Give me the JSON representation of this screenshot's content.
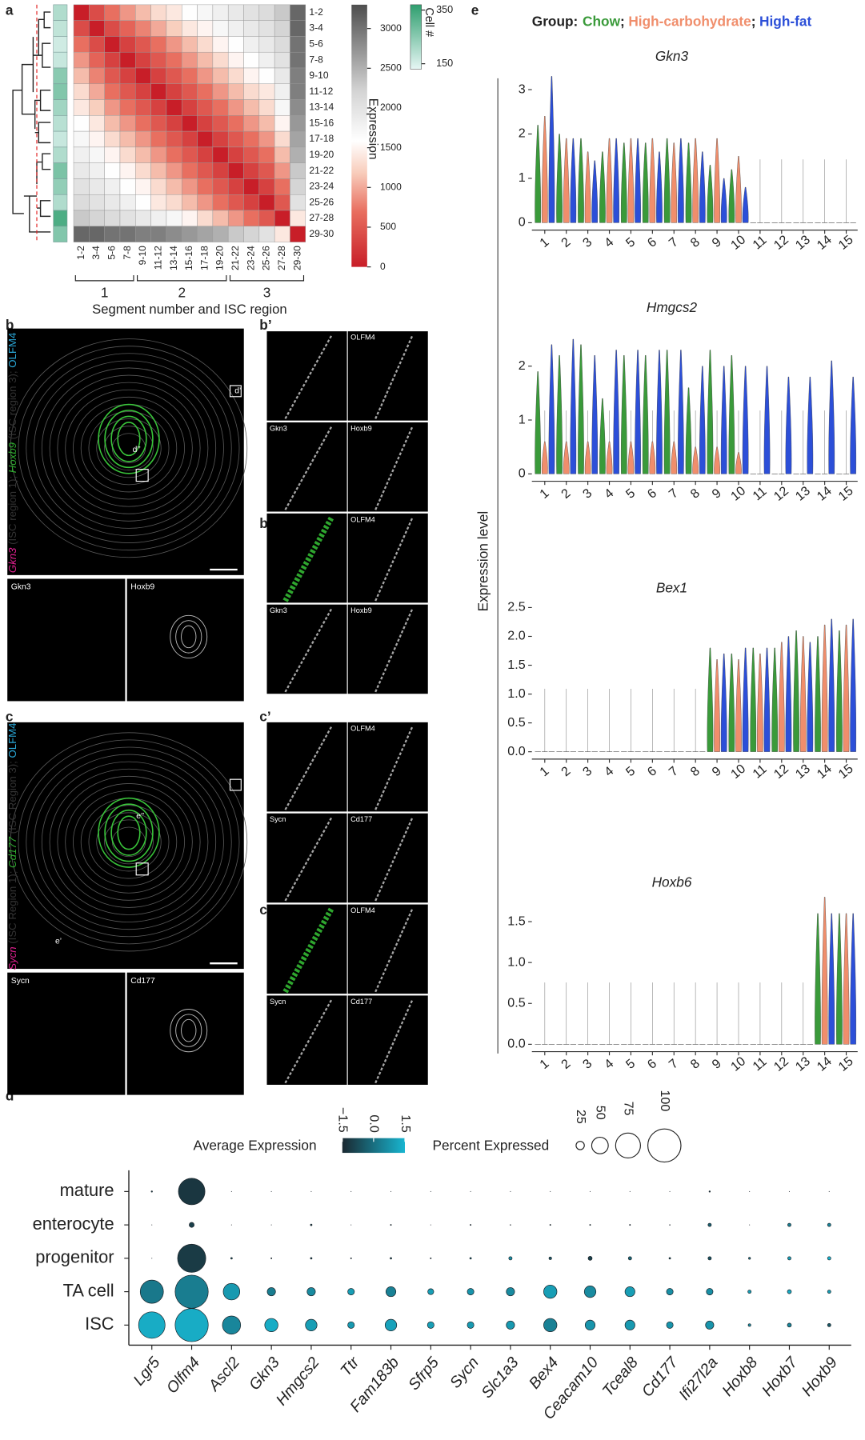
{
  "letters": [
    "a",
    "b",
    "b’",
    "b’’",
    "c",
    "c’",
    "c’’",
    "d",
    "e"
  ],
  "images": {
    "b": {
      "label": [
        "Gkn3",
        " (ISC region 1); ",
        "Hoxb9",
        " (ISC region 3); ",
        "OLFM4"
      ],
      "callouts": [
        "d’",
        "d’’"
      ],
      "insets": [
        "Gkn3",
        "Hoxb9"
      ]
    },
    "b_prime": {
      "tiles": [
        "OLFM4",
        "Gkn3",
        "Hoxb9",
        "OLFM4",
        "Gkn3",
        "Hoxb9"
      ]
    },
    "c": {
      "label": [
        "Sycn",
        " (ISC Region 1); ",
        "Cd177",
        " (ISC Region 3); ",
        "OLFM4"
      ],
      "callouts": [
        "e’’",
        "e’"
      ],
      "insets": [
        "Sycn",
        "Cd177"
      ]
    },
    "c_prime": {
      "tiles": [
        "OLFM4",
        "Sycn",
        "Cd177",
        "OLFM4",
        "Sycn",
        "Cd177"
      ]
    }
  },
  "chart_data": [
    {
      "type": "heatmap",
      "xlabel": "Segment number and ISC region",
      "regions": [
        "1",
        "2",
        "3"
      ],
      "categories": [
        "1-2",
        "3-4",
        "5-6",
        "7-8",
        "9-10",
        "11-12",
        "13-14",
        "15-16",
        "17-18",
        "19-20",
        "21-22",
        "23-24",
        "25-26",
        "27-28",
        "29-30"
      ],
      "values": [
        [
          0,
          400,
          700,
          900,
          1100,
          1300,
          1400,
          1600,
          1700,
          1800,
          1900,
          2000,
          2100,
          2300,
          3100
        ],
        [
          400,
          0,
          400,
          600,
          800,
          1000,
          1200,
          1400,
          1500,
          1700,
          1800,
          1900,
          2000,
          2200,
          3100
        ],
        [
          700,
          400,
          0,
          300,
          500,
          700,
          900,
          1100,
          1300,
          1500,
          1600,
          1800,
          1900,
          2100,
          3000
        ],
        [
          900,
          600,
          300,
          0,
          300,
          500,
          700,
          900,
          1100,
          1300,
          1500,
          1600,
          1800,
          2000,
          3000
        ],
        [
          1100,
          800,
          500,
          300,
          0,
          300,
          500,
          700,
          900,
          1100,
          1300,
          1500,
          1600,
          1900,
          2900
        ],
        [
          1300,
          1000,
          700,
          500,
          300,
          0,
          300,
          500,
          700,
          900,
          1100,
          1300,
          1400,
          1800,
          2900
        ],
        [
          1400,
          1200,
          900,
          700,
          500,
          300,
          0,
          300,
          500,
          700,
          900,
          1100,
          1300,
          1700,
          2800
        ],
        [
          1600,
          1400,
          1100,
          900,
          700,
          500,
          300,
          0,
          300,
          500,
          700,
          900,
          1100,
          1500,
          2700
        ],
        [
          1700,
          1500,
          1300,
          1100,
          900,
          700,
          500,
          300,
          0,
          300,
          500,
          700,
          900,
          1300,
          2600
        ],
        [
          1800,
          1700,
          1500,
          1300,
          1100,
          900,
          700,
          500,
          300,
          0,
          300,
          500,
          700,
          1100,
          2500
        ],
        [
          1900,
          1800,
          1600,
          1500,
          1300,
          1100,
          900,
          700,
          500,
          300,
          0,
          300,
          500,
          900,
          2300
        ],
        [
          2000,
          1900,
          1800,
          1600,
          1500,
          1300,
          1100,
          900,
          700,
          500,
          300,
          0,
          300,
          700,
          2200
        ],
        [
          2100,
          2000,
          1900,
          1800,
          1600,
          1400,
          1300,
          1100,
          900,
          700,
          500,
          300,
          0,
          500,
          2000
        ],
        [
          2300,
          2200,
          2100,
          2000,
          1900,
          1800,
          1700,
          1500,
          1300,
          1100,
          900,
          700,
          500,
          0,
          1400
        ],
        [
          3100,
          3100,
          3000,
          3000,
          2900,
          2900,
          2800,
          2700,
          2600,
          2500,
          2300,
          2200,
          2000,
          1400,
          0
        ]
      ],
      "colorbar": {
        "title": "Expression",
        "lim": [
          0,
          3300
        ],
        "ticks": [
          0,
          500,
          1000,
          1500,
          2000,
          2500,
          3000
        ]
      },
      "cell_counts": {
        "title": "Cell #",
        "lim": [
          130,
          370
        ],
        "ticks": [
          150,
          350
        ],
        "values": [
          200,
          180,
          160,
          170,
          250,
          260,
          220,
          190,
          170,
          200,
          270,
          240,
          200,
          330,
          260
        ]
      }
    },
    {
      "type": "violin",
      "title": "Gkn3",
      "ylabel": "Expression level",
      "legend_title": "Group:",
      "legend_separator": ";",
      "categories": [
        "1",
        "2",
        "3",
        "4",
        "5",
        "6",
        "7",
        "8",
        "9",
        "10",
        "11",
        "12",
        "13",
        "14",
        "15"
      ],
      "ylim": [
        0,
        3.4
      ],
      "yticks": [
        0,
        1,
        2,
        3
      ],
      "series": [
        {
          "name": "Chow",
          "color": "#3a9a3a",
          "values": [
            2.2,
            2.0,
            1.9,
            1.6,
            1.8,
            1.8,
            1.9,
            1.8,
            1.3,
            1.2,
            0,
            0,
            0,
            0,
            0
          ]
        },
        {
          "name": "High-carbohydrate",
          "color": "#f08e6c",
          "values": [
            2.4,
            1.9,
            1.6,
            1.9,
            1.9,
            1.9,
            1.8,
            1.9,
            1.9,
            1.5,
            0,
            0,
            0,
            0,
            0
          ]
        },
        {
          "name": "High-fat",
          "color": "#2c4fd8",
          "values": [
            3.3,
            1.9,
            1.4,
            1.9,
            1.9,
            1.6,
            1.9,
            1.6,
            1.0,
            0.8,
            0,
            0,
            0,
            0,
            0
          ]
        }
      ]
    },
    {
      "type": "violin",
      "title": "Hmgcs2",
      "categories": [
        "1",
        "2",
        "3",
        "4",
        "5",
        "6",
        "7",
        "8",
        "9",
        "10",
        "11",
        "12",
        "13",
        "14",
        "15"
      ],
      "ylim": [
        0,
        2.8
      ],
      "yticks": [
        0,
        1,
        2
      ],
      "series": [
        {
          "name": "Chow",
          "color": "#3a9a3a",
          "values": [
            1.9,
            2.2,
            2.4,
            1.4,
            2.2,
            2.2,
            2.3,
            1.6,
            2.3,
            2.2,
            0,
            0,
            0,
            0,
            0
          ]
        },
        {
          "name": "High-carbohydrate",
          "color": "#f08e6c",
          "values": [
            0.6,
            0.6,
            0.6,
            0.6,
            0.6,
            0.6,
            0.6,
            0.5,
            0.5,
            0.4,
            0,
            0,
            0,
            0,
            0
          ]
        },
        {
          "name": "High-fat",
          "color": "#2c4fd8",
          "values": [
            2.4,
            2.5,
            2.2,
            2.3,
            2.3,
            2.3,
            2.3,
            2.0,
            2.0,
            2.0,
            2.0,
            1.8,
            1.8,
            2.1,
            1.8
          ]
        }
      ]
    },
    {
      "type": "violin",
      "title": "Bex1",
      "categories": [
        "1",
        "2",
        "3",
        "4",
        "5",
        "6",
        "7",
        "8",
        "9",
        "10",
        "11",
        "12",
        "13",
        "14",
        "15"
      ],
      "ylim": [
        0,
        2.6
      ],
      "yticks": [
        {
          "value": 0,
          "label": "0.0"
        },
        {
          "value": 0.5,
          "label": "0.5"
        },
        {
          "value": 1,
          "label": "1.0"
        },
        {
          "value": 1.5,
          "label": "1.5"
        },
        {
          "value": 2,
          "label": "2.0"
        },
        {
          "value": 2.5,
          "label": "2.5"
        }
      ],
      "series": [
        {
          "name": "Chow",
          "color": "#3a9a3a",
          "values": [
            0,
            0,
            0,
            0,
            0,
            0,
            0,
            0,
            1.8,
            1.7,
            1.8,
            1.8,
            2.1,
            2.0,
            2.1
          ]
        },
        {
          "name": "High-carbohydrate",
          "color": "#f08e6c",
          "values": [
            0,
            0,
            0,
            0,
            0,
            0,
            0,
            0,
            1.6,
            1.6,
            1.7,
            1.9,
            2.0,
            2.2,
            2.2
          ]
        },
        {
          "name": "High-fat",
          "color": "#2c4fd8",
          "values": [
            0,
            0,
            0,
            0,
            0,
            0,
            0,
            0,
            1.7,
            1.8,
            1.8,
            2.0,
            1.9,
            2.3,
            2.3
          ]
        }
      ]
    },
    {
      "type": "violin",
      "title": "Hoxb6",
      "categories": [
        "1",
        "2",
        "3",
        "4",
        "5",
        "6",
        "7",
        "8",
        "9",
        "10",
        "11",
        "12",
        "13",
        "14",
        "15"
      ],
      "ylim": [
        0,
        1.8
      ],
      "yticks": [
        {
          "value": 0,
          "label": "0.0"
        },
        {
          "value": 0.5,
          "label": "0.5"
        },
        {
          "value": 1,
          "label": "1.0"
        },
        {
          "value": 1.5,
          "label": "1.5"
        }
      ],
      "series": [
        {
          "name": "Chow",
          "color": "#3a9a3a",
          "values": [
            0,
            0,
            0,
            0,
            0,
            0,
            0,
            0,
            0,
            0,
            0,
            0,
            0,
            1.6,
            1.6
          ]
        },
        {
          "name": "High-carbohydrate",
          "color": "#f08e6c",
          "values": [
            0,
            0,
            0,
            0,
            0,
            0,
            0,
            0,
            0,
            0,
            0,
            0,
            0,
            1.8,
            1.6
          ]
        },
        {
          "name": "High-fat",
          "color": "#2c4fd8",
          "values": [
            0,
            0,
            0,
            0,
            0,
            0,
            0,
            0,
            0,
            0,
            0,
            0,
            0,
            1.6,
            1.6
          ]
        }
      ]
    },
    {
      "type": "dot",
      "rows": [
        "mature",
        "enterocyte",
        "progenitor",
        "TA cell",
        "ISC"
      ],
      "categories": [
        "Lgr5",
        "Olfm4",
        "Ascl2",
        "Gkn3",
        "Hmgcs2",
        "Ttr",
        "Fam183b",
        "Sfrp5",
        "Sycn",
        "Slc1a3",
        "Bex4",
        "Ceacam10",
        "Tceal8",
        "Cd177",
        "Ifi27l2a",
        "Hoxb8",
        "Hoxb7",
        "Hoxb9"
      ],
      "percent": [
        [
          4,
          80,
          1,
          1,
          1,
          1,
          1,
          1,
          1,
          1,
          1,
          1,
          1,
          1,
          4,
          1,
          1,
          1
        ],
        [
          1,
          15,
          1,
          1,
          5,
          1,
          3,
          1,
          3,
          2,
          3,
          3,
          3,
          2,
          10,
          1,
          10,
          10
        ],
        [
          1,
          85,
          5,
          3,
          5,
          3,
          5,
          3,
          5,
          10,
          8,
          12,
          10,
          5,
          10,
          6,
          10,
          10
        ],
        [
          70,
          100,
          50,
          25,
          25,
          20,
          30,
          18,
          20,
          25,
          40,
          35,
          30,
          20,
          20,
          10,
          12,
          10
        ],
        [
          80,
          100,
          55,
          40,
          35,
          20,
          35,
          20,
          20,
          25,
          40,
          30,
          30,
          20,
          25,
          8,
          12,
          10
        ]
      ],
      "expression": [
        [
          -0.8,
          -1.2,
          -1,
          -1,
          -1,
          -1,
          -1,
          -1,
          -1,
          -1,
          -1,
          -1,
          -1,
          -1,
          -1,
          -1,
          -1,
          -1
        ],
        [
          -1,
          -1,
          -1,
          -1,
          -0.8,
          -1,
          -0.8,
          -1,
          -0.8,
          -0.8,
          -0.8,
          -0.8,
          -0.8,
          -0.8,
          -0.3,
          -1,
          0.3,
          0.5
        ],
        [
          -1,
          -1.1,
          -0.5,
          -0.5,
          -0.6,
          -0.5,
          -0.6,
          -0.5,
          0,
          0.7,
          -0.5,
          -1,
          -0.2,
          -0.5,
          -0.6,
          0.4,
          1.0,
          1.5
        ],
        [
          0.2,
          0.3,
          0.9,
          0.3,
          0.6,
          1.0,
          0.4,
          1.0,
          0.8,
          0.6,
          1.0,
          0.6,
          1.0,
          0.7,
          0.7,
          1.0,
          1.3,
          1.0
        ],
        [
          1.3,
          1.3,
          0.5,
          1.3,
          1.0,
          0.9,
          1.1,
          1.0,
          0.9,
          0.9,
          0.4,
          0.8,
          0.9,
          0.8,
          0.8,
          0.7,
          0.5,
          -0.5
        ]
      ],
      "color_legend": {
        "title": "Average Expression",
        "lim": [
          -1.5,
          1.5
        ],
        "ticks": [
          {
            "value": -1.5,
            "label": "−1.5"
          },
          {
            "value": 0,
            "label": "0.0"
          },
          {
            "value": 1.5,
            "label": "1.5"
          }
        ]
      },
      "size_legend": {
        "title": "Percent Expressed",
        "ticks": [
          25,
          50,
          75,
          100
        ]
      }
    }
  ]
}
